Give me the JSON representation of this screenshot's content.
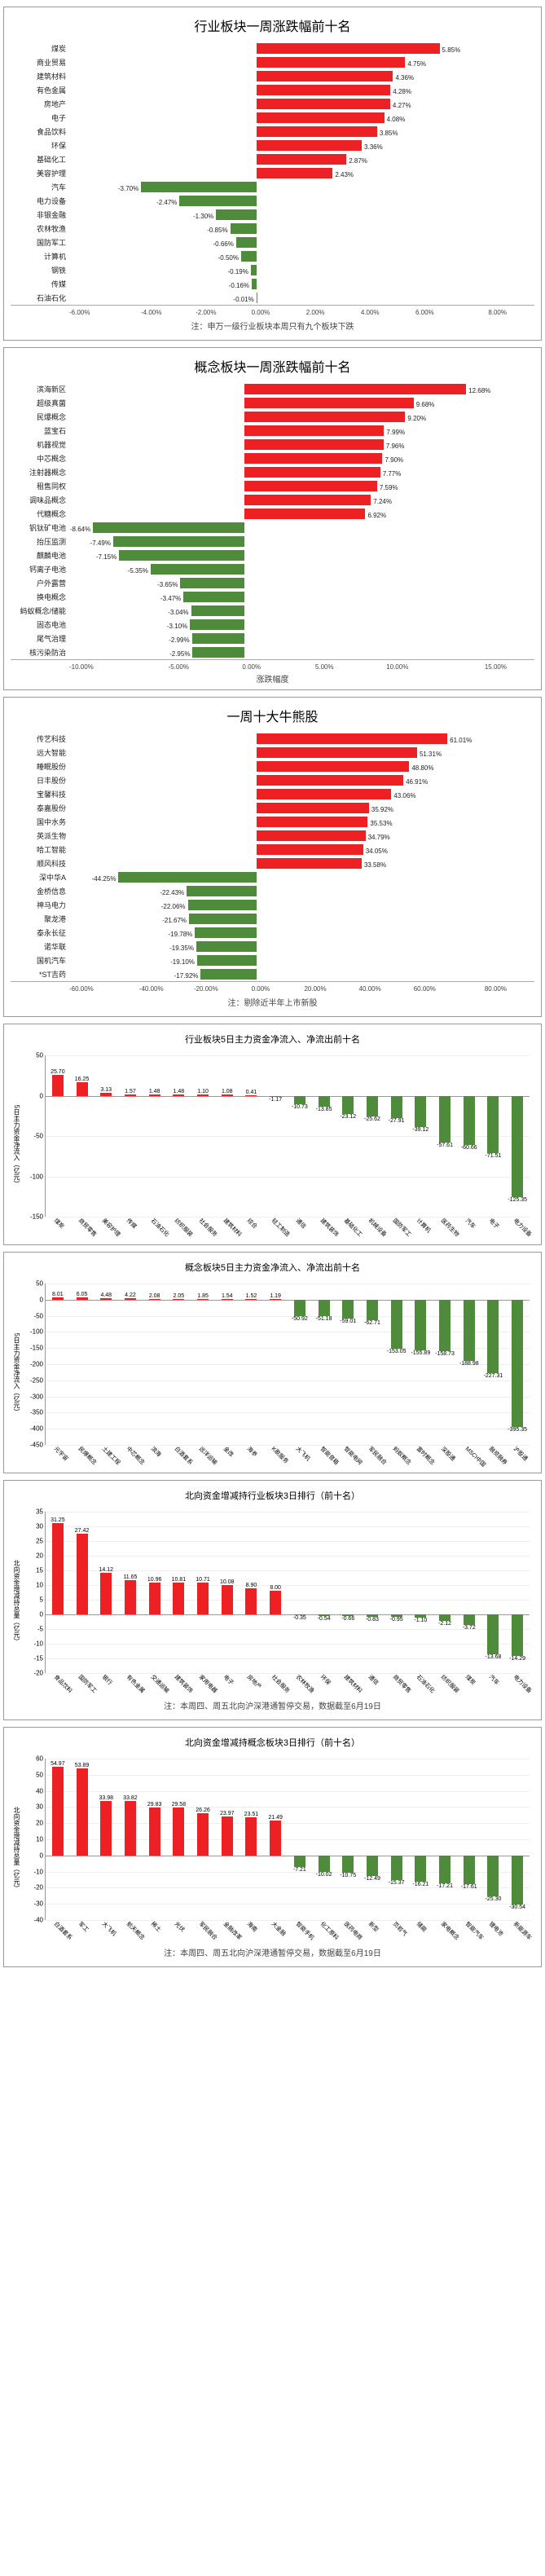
{
  "chart1": {
    "title": "行业板块一周涨跌幅前十名",
    "note": "注：申万一级行业板块本周只有九个板块下跌",
    "type": "horizontal-diverging-bar",
    "xlim": [
      -6,
      8
    ],
    "xticks": [
      "-6.00%",
      "-4.00%",
      "-2.00%",
      "0.00%",
      "2.00%",
      "4.00%",
      "6.00%",
      "8.00%"
    ],
    "pos_color": "#ed2024",
    "neg_color": "#4e8b3a",
    "categories": [
      "煤炭",
      "商业贸易",
      "建筑材料",
      "有色金属",
      "房地产",
      "电子",
      "食品饮料",
      "环保",
      "基础化工",
      "美容护理",
      "汽车",
      "电力设备",
      "非银金融",
      "农林牧渔",
      "国防军工",
      "计算机",
      "钢铁",
      "传媒",
      "石油石化"
    ],
    "values": [
      5.85,
      4.75,
      4.36,
      4.28,
      4.27,
      4.08,
      3.85,
      3.36,
      2.87,
      2.43,
      -3.7,
      -2.47,
      -1.3,
      -0.85,
      -0.66,
      -0.5,
      -0.19,
      -0.16,
      -0.01
    ],
    "label_fmt": "pct2"
  },
  "chart2": {
    "title": "概念板块一周涨跌幅前十名",
    "xlabel": "涨跌幅度",
    "type": "horizontal-diverging-bar",
    "xlim": [
      -10,
      15
    ],
    "xticks": [
      "-10.00%",
      "-5.00%",
      "0.00%",
      "5.00%",
      "10.00%",
      "15.00%"
    ],
    "pos_color": "#ed2024",
    "neg_color": "#4e8b3a",
    "categories": [
      "滨海新区",
      "超级真菌",
      "民爆概念",
      "蓝宝石",
      "机器视觉",
      "中芯概念",
      "注射器概念",
      "租售同权",
      "调味品概念",
      "代糖概念",
      "钒钛矿电池",
      "抬压监测",
      "麒麟电池",
      "钙离子电池",
      "户外露营",
      "换电概念",
      "蚂蚁概念/储能",
      "固态电池",
      "尾气治理",
      "核污染防治"
    ],
    "values": [
      12.68,
      9.68,
      9.2,
      7.99,
      7.96,
      7.9,
      7.77,
      7.59,
      7.24,
      6.92,
      -8.64,
      -7.49,
      -7.15,
      -5.35,
      -3.65,
      -3.47,
      -3.04,
      -3.1,
      -2.99,
      -2.95
    ],
    "label_fmt": "pct2"
  },
  "chart3": {
    "title": "一周十大牛熊股",
    "note": "注：剔除近半年上市新股",
    "type": "horizontal-diverging-bar",
    "xlim": [
      -60,
      80
    ],
    "xticks": [
      "-60.00%",
      "-40.00%",
      "-20.00%",
      "0.00%",
      "20.00%",
      "40.00%",
      "60.00%",
      "80.00%"
    ],
    "pos_color": "#ed2024",
    "neg_color": "#4e8b3a",
    "categories": [
      "传艺科技",
      "远大智能",
      "睡眠股份",
      "日丰股份",
      "宝馨科技",
      "泰嘉股份",
      "国中水务",
      "英派生物",
      "哈工智能",
      "顺风科技",
      "深中华A",
      "金桥信息",
      "神马电力",
      "聚龙港",
      "泰永长征",
      "诺华联",
      "国机汽车",
      "*ST吉药"
    ],
    "values": [
      61.01,
      51.31,
      48.8,
      46.91,
      43.06,
      35.92,
      35.53,
      34.79,
      34.05,
      33.58,
      -44.25,
      -22.43,
      -22.06,
      -21.67,
      -19.78,
      -19.35,
      -19.1,
      -17.92
    ],
    "label_fmt": "pct2"
  },
  "chart4": {
    "title": "行业板块5日主力资金净流入、净流出前十名",
    "type": "vertical-bar",
    "ylabel": "5日主力资金净流入（亿元）",
    "ylim": [
      -150,
      50
    ],
    "ytick": 50,
    "pos_color": "#ed2024",
    "neg_color": "#4e8b3a",
    "categories": [
      "煤炭",
      "商贸零售",
      "美容护理",
      "传媒",
      "石油石化",
      "纺织服装",
      "社会服务",
      "建筑材料",
      "综合",
      "轻工制造",
      "通信",
      "建筑装饰",
      "基础化工",
      "机械设备",
      "国防军工",
      "计算机",
      "医药生物",
      "汽车",
      "电子",
      "电力设备"
    ],
    "values": [
      25.7,
      16.25,
      3.13,
      1.57,
      1.48,
      1.48,
      1.1,
      1.08,
      0.41,
      -1.17,
      -10.73,
      -13.85,
      -23.12,
      -25.62,
      -27.91,
      -39.12,
      -57.61,
      -60.66,
      -71.51,
      -125.35
    ]
  },
  "chart5": {
    "title": "概念板块5日主力资金净流入、净流出前十名",
    "type": "vertical-bar",
    "ylabel": "5日主力资金净流入（亿元）",
    "ylim": [
      -450,
      50
    ],
    "ytick": 50,
    "pos_color": "#ed2024",
    "neg_color": "#4e8b3a",
    "categories": [
      "元宇宙",
      "民爆概念",
      "土建工程",
      "中芯概念",
      "滨海",
      "白酒套系",
      "远洋运输",
      "金改",
      "海参",
      "K歌服务",
      "大飞机",
      "智能音箱",
      "智能电网",
      "军民融合",
      "蚂蚁概念",
      "富时概念",
      "深股通",
      "MSCI中国",
      "融资融券",
      "沪股通"
    ],
    "values": [
      8.01,
      6.05,
      4.48,
      4.22,
      2.08,
      2.05,
      1.85,
      1.54,
      1.52,
      1.19,
      -50.92,
      -51.18,
      -59.01,
      -62.71,
      -153.05,
      -155.89,
      -158.73,
      -188.98,
      -227.31,
      -395.35
    ]
  },
  "chart6": {
    "title": "北向资金增减持行业板块3日排行（前十名）",
    "note": "注：本周四、周五北向沪深港通暂停交易，数据截至6月19日",
    "type": "vertical-bar",
    "ylabel": "北向资金增减持总量（亿元）",
    "ylim": [
      -20,
      35
    ],
    "ytick": 5,
    "pos_color": "#ed2024",
    "neg_color": "#4e8b3a",
    "categories": [
      "食品饮料",
      "国防军工",
      "银行",
      "有色金属",
      "交通运输",
      "建筑装饰",
      "家用电器",
      "电子",
      "房地产",
      "社会服务",
      "农林牧渔",
      "环保",
      "建筑材料",
      "通信",
      "商贸零售",
      "石油石化",
      "纺织服装",
      "煤炭",
      "汽车",
      "电力设备"
    ],
    "values": [
      31.25,
      27.42,
      14.12,
      11.65,
      10.96,
      10.81,
      10.71,
      10.08,
      8.9,
      8.0,
      -0.35,
      -0.54,
      -0.66,
      -0.83,
      -0.95,
      -1.1,
      -2.12,
      -3.72,
      -13.68,
      -14.29
    ]
  },
  "chart7": {
    "title": "北向资金增减持概念板块3日排行（前十名）",
    "note": "注：本周四、周五北向沪深港通暂停交易，数据截至6月19日",
    "type": "vertical-bar",
    "ylabel": "北向资金增减持总量（亿元）",
    "ylim": [
      -40,
      60
    ],
    "ytick": 10,
    "pos_color": "#ed2024",
    "neg_color": "#4e8b3a",
    "categories": [
      "白酒套系",
      "军工",
      "大飞机",
      "航天概念",
      "稀土",
      "光伏",
      "军民融合",
      "金融改革",
      "海南",
      "大金融",
      "智能手机",
      "化工原料",
      "医药电商",
      "新型",
      "页岩气",
      "储能",
      "家电概念",
      "智能汽车",
      "锂电池",
      "新能源车"
    ],
    "values": [
      54.97,
      53.89,
      33.98,
      33.82,
      29.83,
      29.58,
      26.26,
      23.97,
      23.51,
      21.49,
      -7.21,
      -10.02,
      -10.75,
      -12.49,
      -15.37,
      -16.21,
      -17.21,
      -17.61,
      -25.3,
      -30.54
    ]
  }
}
